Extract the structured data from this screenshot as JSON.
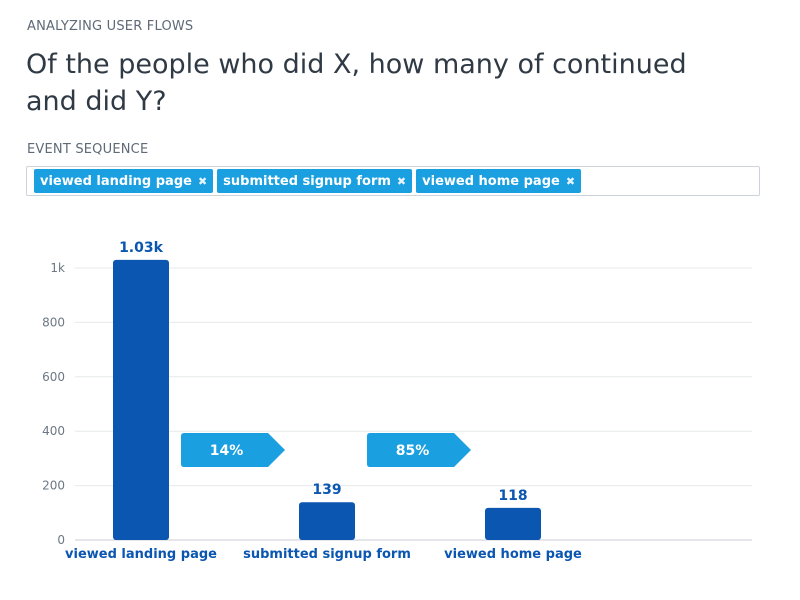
{
  "header": {
    "eyebrow": "ANALYZING USER FLOWS",
    "title": "Of the people who did X, how many of continued and did Y?"
  },
  "sequence": {
    "label": "EVENT SEQUENCE",
    "items": [
      {
        "label": "viewed landing page",
        "remove_icon": "close-icon"
      },
      {
        "label": "submitted signup form",
        "remove_icon": "close-icon"
      },
      {
        "label": "viewed home page",
        "remove_icon": "close-icon"
      }
    ]
  },
  "colors": {
    "bar": "#0a56b1",
    "arrow": "#1a9fe0",
    "label": "#0a56b1",
    "tag": "#1a9fe0"
  },
  "chart_data": {
    "type": "bar",
    "categories": [
      "viewed landing page",
      "submitted signup form",
      "viewed home page"
    ],
    "values": [
      1030,
      139,
      118
    ],
    "value_labels": [
      "1.03k",
      "139",
      "118"
    ],
    "conversions": [
      {
        "from": "viewed landing page",
        "to": "submitted signup form",
        "label": "14%"
      },
      {
        "from": "submitted signup form",
        "to": "viewed home page",
        "label": "85%"
      }
    ],
    "yticks": [
      0,
      200,
      400,
      600,
      800,
      1000
    ],
    "ytick_labels": [
      "0",
      "200",
      "400",
      "600",
      "800",
      "1k"
    ],
    "ylim": [
      0,
      1000
    ],
    "title": "",
    "xlabel": "",
    "ylabel": "",
    "grid": true
  }
}
